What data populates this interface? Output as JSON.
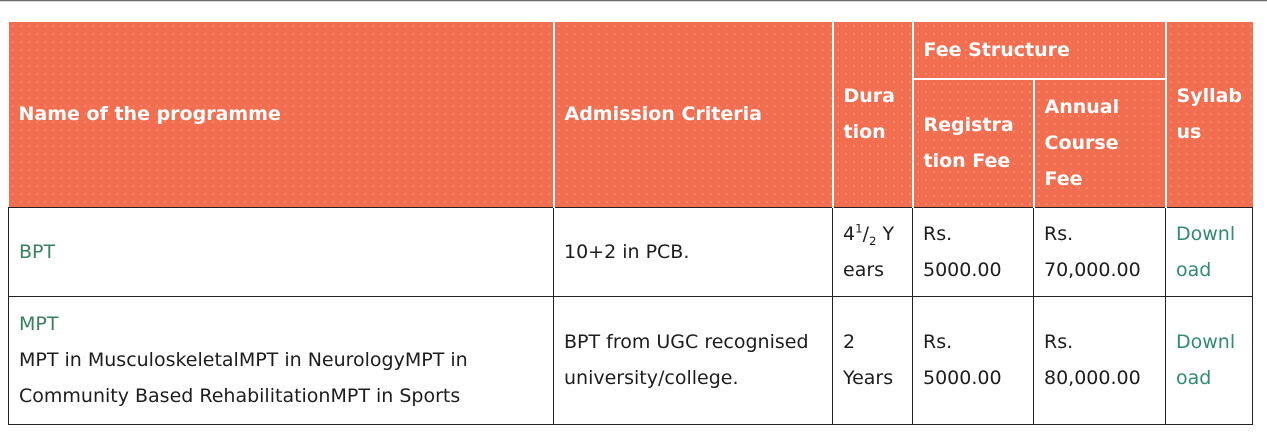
{
  "colors": {
    "header_bg": "#F26E50",
    "header_text": "#FFFFFF",
    "body_text": "#1D1D1D",
    "border_dark": "#222222",
    "programme_link": "#38815F",
    "download_link": "#2F8B71",
    "top_line": "#6E6E6E"
  },
  "table": {
    "header": {
      "programme": "Name of the programme",
      "admission": "Admission Criteria",
      "duration": "Duration",
      "fee_structure": "Fee Structure",
      "registration_fee": "Registration Fee",
      "annual_course_fee": "Annual Course Fee",
      "syllabus": "Syllabus"
    },
    "rows": [
      {
        "programme": {
          "link": "BPT",
          "description": ""
        },
        "admission": "10+2 in PCB.",
        "duration": {
          "base": "4",
          "sup": "1",
          "slash": "/",
          "sub": "2",
          "unit": "Years"
        },
        "registration_fee": "Rs. 5000.00",
        "annual_course_fee": "Rs. 70,000.00",
        "syllabus": "Download"
      },
      {
        "programme": {
          "link": "MPT",
          "description": "MPT in MusculoskeletalMPT in NeurologyMPT in Community Based RehabilitationMPT in Sports"
        },
        "admission": "BPT from UGC recognised university/college.",
        "duration": {
          "base": "2",
          "unit": "Years"
        },
        "registration_fee": "Rs. 5000.00",
        "annual_course_fee": "Rs. 80,000.00",
        "syllabus": "Download"
      }
    ]
  }
}
